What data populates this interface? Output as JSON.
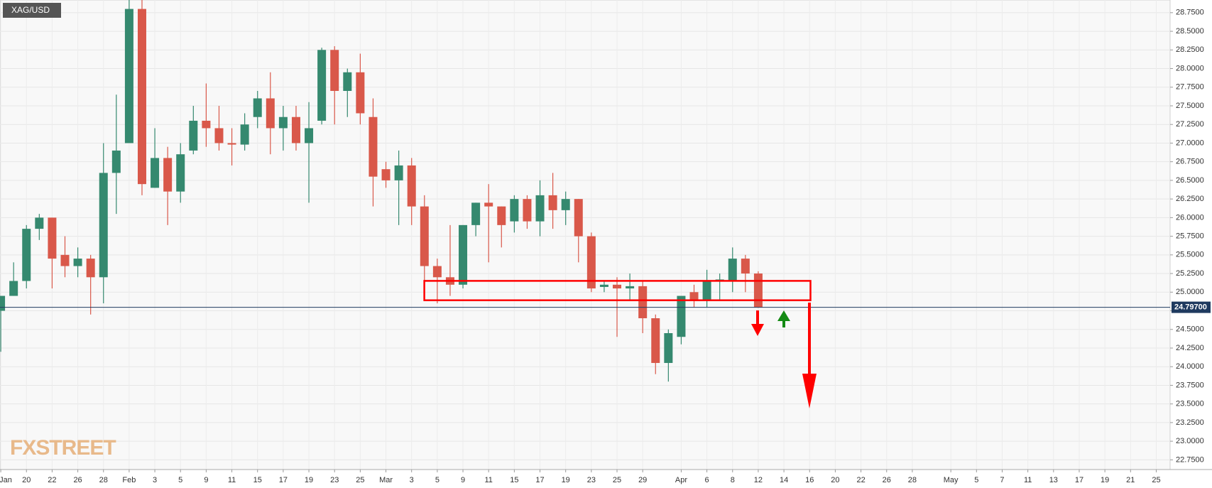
{
  "chart_data": {
    "type": "candlestick",
    "symbol": "XAG/USD",
    "watermark": "FXSTREET",
    "up_color": "#35896f",
    "down_color": "#d9584a",
    "grid": true,
    "xlim": [
      -0.06,
      91.08
    ],
    "ylim": [
      22.62,
      28.92
    ],
    "open": [
      24.75,
      24.95,
      25.15,
      25.85,
      26.0,
      25.5,
      25.35,
      25.45,
      25.2,
      26.6,
      27.0,
      28.8,
      26.4,
      26.8,
      26.35,
      26.9,
      27.3,
      27.2,
      27.0,
      26.98,
      27.35,
      27.6,
      27.2,
      27.35,
      27.0,
      27.3,
      28.25,
      27.7,
      27.95,
      27.35,
      26.65,
      26.5,
      26.7,
      26.15,
      25.35,
      25.2,
      25.1,
      25.9,
      26.2,
      26.15,
      25.95,
      26.25,
      25.95,
      26.3,
      26.1,
      26.25,
      25.75,
      25.07,
      25.1,
      25.05,
      25.08,
      24.65,
      24.05,
      24.4,
      25.0,
      24.9,
      25.15,
      25.15,
      25.45,
      25.25
    ],
    "high": [
      24.95,
      25.4,
      25.9,
      26.05,
      26.0,
      25.75,
      25.6,
      25.5,
      27.0,
      27.65,
      28.95,
      28.95,
      27.2,
      26.95,
      27.0,
      27.5,
      27.8,
      27.5,
      27.2,
      27.4,
      27.7,
      27.95,
      27.5,
      27.5,
      27.55,
      28.28,
      28.3,
      28.0,
      28.2,
      27.6,
      26.75,
      26.9,
      26.8,
      26.3,
      25.45,
      25.9,
      25.9,
      26.2,
      26.45,
      26.15,
      26.3,
      26.3,
      26.5,
      26.6,
      26.35,
      26.25,
      25.8,
      25.15,
      25.2,
      25.25,
      25.15,
      24.7,
      24.5,
      24.95,
      25.1,
      25.3,
      25.25,
      25.6,
      25.5,
      25.28
    ],
    "low": [
      24.2,
      24.95,
      25.05,
      25.7,
      25.05,
      25.2,
      25.2,
      24.7,
      24.85,
      26.05,
      27.0,
      26.3,
      26.4,
      25.9,
      26.2,
      26.85,
      26.95,
      26.9,
      26.7,
      26.9,
      27.2,
      26.85,
      26.9,
      26.9,
      26.2,
      27.25,
      27.25,
      27.35,
      27.25,
      26.15,
      26.4,
      25.9,
      25.9,
      25.15,
      24.85,
      24.95,
      25.05,
      25.75,
      25.4,
      25.6,
      25.8,
      25.85,
      25.75,
      25.85,
      25.9,
      25.4,
      25.0,
      25.0,
      24.4,
      24.9,
      24.45,
      23.9,
      23.8,
      24.3,
      24.8,
      24.8,
      24.9,
      25.0,
      25.0,
      24.79
    ],
    "close": [
      24.95,
      25.15,
      25.85,
      26.0,
      25.45,
      25.35,
      25.45,
      25.2,
      26.6,
      26.9,
      28.8,
      26.45,
      26.8,
      26.35,
      26.85,
      27.3,
      27.2,
      27.0,
      26.98,
      27.25,
      27.6,
      27.2,
      27.35,
      27.0,
      27.2,
      28.25,
      27.7,
      27.95,
      27.4,
      26.55,
      26.5,
      26.7,
      26.15,
      25.35,
      25.2,
      25.1,
      25.9,
      26.2,
      26.15,
      25.9,
      26.25,
      25.95,
      26.3,
      26.1,
      26.25,
      25.75,
      25.05,
      25.1,
      25.05,
      25.08,
      24.65,
      24.05,
      24.45,
      24.95,
      24.9,
      25.15,
      25.17,
      25.45,
      25.25,
      24.797
    ],
    "last_price": {
      "value": 24.797,
      "label": "24.79700"
    },
    "xticks": [
      {
        "value": 0,
        "label": "Jan"
      },
      {
        "value": 2,
        "label": "20"
      },
      {
        "value": 4,
        "label": "22"
      },
      {
        "value": 6,
        "label": "26"
      },
      {
        "value": 8,
        "label": "28"
      },
      {
        "value": 10,
        "label": "Feb"
      },
      {
        "value": 12,
        "label": "3"
      },
      {
        "value": 14,
        "label": "5"
      },
      {
        "value": 16,
        "label": "9"
      },
      {
        "value": 18,
        "label": "11"
      },
      {
        "value": 20,
        "label": "15"
      },
      {
        "value": 22,
        "label": "17"
      },
      {
        "value": 24,
        "label": "19"
      },
      {
        "value": 26,
        "label": "23"
      },
      {
        "value": 28,
        "label": "25"
      },
      {
        "value": 30,
        "label": "Mar"
      },
      {
        "value": 32,
        "label": "3"
      },
      {
        "value": 34,
        "label": "5"
      },
      {
        "value": 36,
        "label": "9"
      },
      {
        "value": 38,
        "label": "11"
      },
      {
        "value": 40,
        "label": "15"
      },
      {
        "value": 42,
        "label": "17"
      },
      {
        "value": 44,
        "label": "19"
      },
      {
        "value": 46,
        "label": "23"
      },
      {
        "value": 48,
        "label": "25"
      },
      {
        "value": 50,
        "label": "29"
      },
      {
        "value": 53,
        "label": "Apr"
      },
      {
        "value": 55,
        "label": "6"
      },
      {
        "value": 57,
        "label": "8"
      },
      {
        "value": 59,
        "label": "12"
      },
      {
        "value": 61,
        "label": "14"
      },
      {
        "value": 63,
        "label": "16"
      },
      {
        "value": 65,
        "label": "20"
      },
      {
        "value": 67,
        "label": "22"
      },
      {
        "value": 69,
        "label": "26"
      },
      {
        "value": 71,
        "label": "28"
      },
      {
        "value": 74,
        "label": "May"
      },
      {
        "value": 76,
        "label": "5"
      },
      {
        "value": 78,
        "label": "7"
      },
      {
        "value": 80,
        "label": "11"
      },
      {
        "value": 82,
        "label": "13"
      },
      {
        "value": 84,
        "label": "17"
      },
      {
        "value": 86,
        "label": "19"
      },
      {
        "value": 88,
        "label": "21"
      },
      {
        "value": 90,
        "label": "25"
      }
    ],
    "yticks": [
      {
        "value": 22.75,
        "label": "22.7500"
      },
      {
        "value": 23.0,
        "label": "23.0000"
      },
      {
        "value": 23.25,
        "label": "23.2500"
      },
      {
        "value": 23.5,
        "label": "23.5000"
      },
      {
        "value": 23.75,
        "label": "23.7500"
      },
      {
        "value": 24.0,
        "label": "24.0000"
      },
      {
        "value": 24.25,
        "label": "24.2500"
      },
      {
        "value": 24.5,
        "label": "24.5000"
      },
      {
        "value": 24.75,
        "label": "24.7500"
      },
      {
        "value": 25.0,
        "label": "25.0000"
      },
      {
        "value": 25.25,
        "label": "25.2500"
      },
      {
        "value": 25.5,
        "label": "25.5000"
      },
      {
        "value": 25.75,
        "label": "25.7500"
      },
      {
        "value": 26.0,
        "label": "26.0000"
      },
      {
        "value": 26.25,
        "label": "26.2500"
      },
      {
        "value": 26.5,
        "label": "26.5000"
      },
      {
        "value": 26.75,
        "label": "26.7500"
      },
      {
        "value": 27.0,
        "label": "27.0000"
      },
      {
        "value": 27.25,
        "label": "27.2500"
      },
      {
        "value": 27.5,
        "label": "27.5000"
      },
      {
        "value": 27.75,
        "label": "27.7500"
      },
      {
        "value": 28.0,
        "label": "28.0000"
      },
      {
        "value": 28.25,
        "label": "28.2500"
      },
      {
        "value": 28.5,
        "label": "28.5000"
      },
      {
        "value": 28.75,
        "label": "28.7500"
      }
    ]
  }
}
